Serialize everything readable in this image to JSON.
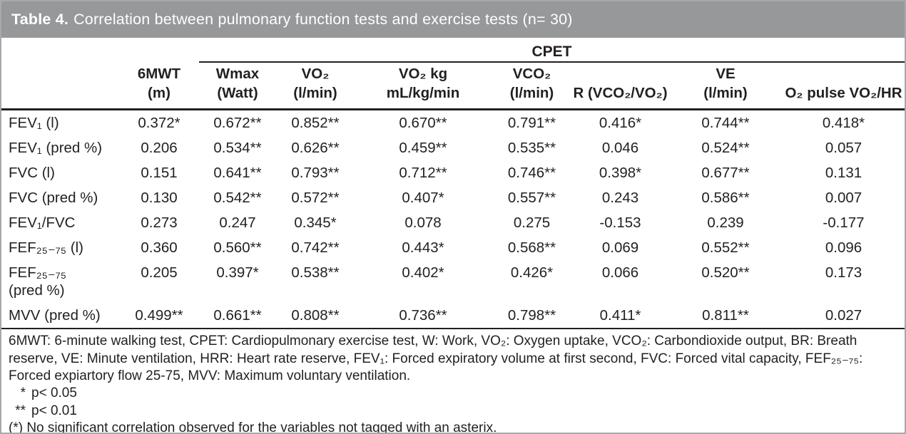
{
  "title": {
    "number": "Table 4.",
    "caption": "Correlation between pulmonary function tests and exercise tests (n= 30)"
  },
  "table": {
    "group_header": "CPET",
    "header": {
      "row_label_column": "",
      "columns": [
        {
          "line1": "6MWT",
          "line2": "(m)"
        },
        {
          "line1": "Wmax",
          "line2": "(Watt)"
        },
        {
          "line1": "VO₂",
          "line2": "(l/min)"
        },
        {
          "line1": "VO₂ kg",
          "line2": "mL/kg/min"
        },
        {
          "line1": "VCO₂",
          "line2": "(l/min)"
        },
        {
          "line1": "",
          "line2": "R (VCO₂/VO₂)"
        },
        {
          "line1": "VE",
          "line2": "(l/min)"
        },
        {
          "line1": "",
          "line2": "O₂ pulse VO₂/HR"
        }
      ]
    },
    "rows": [
      {
        "label": "FEV₁ (l)",
        "values": [
          "0.372*",
          "0.672**",
          "0.852**",
          "0.670**",
          "0.791**",
          "0.416*",
          "0.744**",
          "0.418*"
        ]
      },
      {
        "label": "FEV₁ (pred %)",
        "values": [
          "0.206",
          "0.534**",
          "0.626**",
          "0.459**",
          "0.535**",
          "0.046",
          "0.524**",
          "0.057"
        ]
      },
      {
        "label": "FVC (l)",
        "values": [
          "0.151",
          "0.641**",
          "0.793**",
          "0.712**",
          "0.746**",
          "0.398*",
          "0.677**",
          "0.131"
        ]
      },
      {
        "label": "FVC (pred %)",
        "values": [
          "0.130",
          "0.542**",
          "0.572**",
          "0.407*",
          "0.557**",
          "0.243",
          "0.586**",
          "0.007"
        ]
      },
      {
        "label": "FEV₁/FVC",
        "values": [
          "0.273",
          "0.247",
          "0.345*",
          "0.078",
          "0.275",
          "-0.153",
          "0.239",
          "-0.177"
        ]
      },
      {
        "label": "FEF₂₅₋₇₅ (l)",
        "values": [
          "0.360",
          "0.560**",
          "0.742**",
          "0.443*",
          "0.568**",
          "0.069",
          "0.552**",
          "0.096"
        ]
      },
      {
        "label": "FEF₂₅₋₇₅\n(pred %)",
        "values": [
          "0.205",
          "0.397*",
          "0.538**",
          "0.402*",
          "0.426*",
          "0.066",
          "0.520**",
          "0.173"
        ]
      },
      {
        "label": "MVV (pred %)",
        "values": [
          "0.499**",
          "0.661**",
          "0.808**",
          "0.736**",
          "0.798**",
          "0.411*",
          "0.811**",
          "0.027"
        ]
      }
    ]
  },
  "footnotes": {
    "abbreviations": "6MWT: 6-minute walking test, CPET: Cardiopulmonary exercise test, W: Work, VO₂: Oxygen uptake, VCO₂: Carbondioxide output,  BR: Breath reserve, VE: Minute ventilation, HRR: Heart rate reserve, FEV₁: Forced expiratory volume at first second, FVC: Forced vital capacity, FEF₂₅₋₇₅: Forced expiartory flow 25-75, MVV: Maximum voluntary ventilation.",
    "significance": [
      {
        "marker": "*",
        "text": "p< 0.05"
      },
      {
        "marker": "**",
        "text": "p< 0.01"
      }
    ],
    "note": "(*) No significant correlation observed for the variables not tagged with an asterix."
  },
  "colors": {
    "title_bar_bg": "#96989a",
    "title_text": "#ffffff",
    "body_text": "#231f20",
    "rule": "#231f20",
    "frame_border": "#a7a9ac"
  }
}
